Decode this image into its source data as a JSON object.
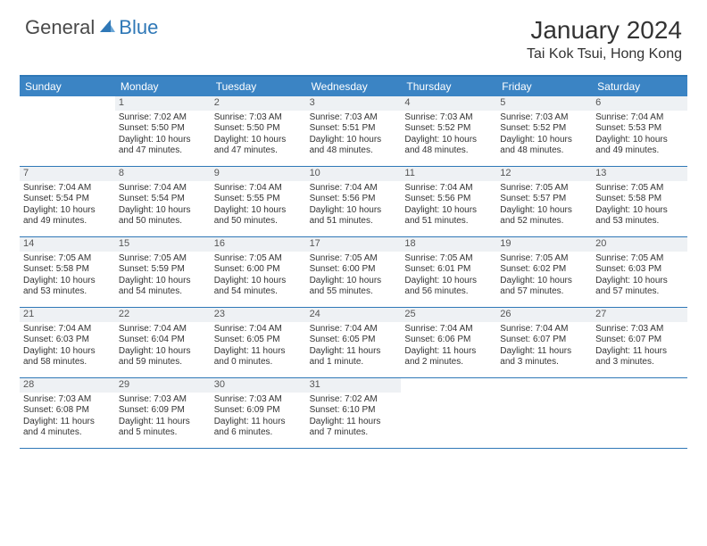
{
  "logo": {
    "part1": "General",
    "part2": "Blue"
  },
  "title": "January 2024",
  "location": "Tai Kok Tsui, Hong Kong",
  "colors": {
    "header_bg": "#3b84c4",
    "border": "#2f78b7",
    "daynum_bg": "#eef1f4",
    "text": "#333333"
  },
  "dayNames": [
    "Sunday",
    "Monday",
    "Tuesday",
    "Wednesday",
    "Thursday",
    "Friday",
    "Saturday"
  ],
  "weeks": [
    [
      {
        "n": "",
        "sr": "",
        "ss": "",
        "dl": ""
      },
      {
        "n": "1",
        "sr": "Sunrise: 7:02 AM",
        "ss": "Sunset: 5:50 PM",
        "dl": "Daylight: 10 hours and 47 minutes."
      },
      {
        "n": "2",
        "sr": "Sunrise: 7:03 AM",
        "ss": "Sunset: 5:50 PM",
        "dl": "Daylight: 10 hours and 47 minutes."
      },
      {
        "n": "3",
        "sr": "Sunrise: 7:03 AM",
        "ss": "Sunset: 5:51 PM",
        "dl": "Daylight: 10 hours and 48 minutes."
      },
      {
        "n": "4",
        "sr": "Sunrise: 7:03 AM",
        "ss": "Sunset: 5:52 PM",
        "dl": "Daylight: 10 hours and 48 minutes."
      },
      {
        "n": "5",
        "sr": "Sunrise: 7:03 AM",
        "ss": "Sunset: 5:52 PM",
        "dl": "Daylight: 10 hours and 48 minutes."
      },
      {
        "n": "6",
        "sr": "Sunrise: 7:04 AM",
        "ss": "Sunset: 5:53 PM",
        "dl": "Daylight: 10 hours and 49 minutes."
      }
    ],
    [
      {
        "n": "7",
        "sr": "Sunrise: 7:04 AM",
        "ss": "Sunset: 5:54 PM",
        "dl": "Daylight: 10 hours and 49 minutes."
      },
      {
        "n": "8",
        "sr": "Sunrise: 7:04 AM",
        "ss": "Sunset: 5:54 PM",
        "dl": "Daylight: 10 hours and 50 minutes."
      },
      {
        "n": "9",
        "sr": "Sunrise: 7:04 AM",
        "ss": "Sunset: 5:55 PM",
        "dl": "Daylight: 10 hours and 50 minutes."
      },
      {
        "n": "10",
        "sr": "Sunrise: 7:04 AM",
        "ss": "Sunset: 5:56 PM",
        "dl": "Daylight: 10 hours and 51 minutes."
      },
      {
        "n": "11",
        "sr": "Sunrise: 7:04 AM",
        "ss": "Sunset: 5:56 PM",
        "dl": "Daylight: 10 hours and 51 minutes."
      },
      {
        "n": "12",
        "sr": "Sunrise: 7:05 AM",
        "ss": "Sunset: 5:57 PM",
        "dl": "Daylight: 10 hours and 52 minutes."
      },
      {
        "n": "13",
        "sr": "Sunrise: 7:05 AM",
        "ss": "Sunset: 5:58 PM",
        "dl": "Daylight: 10 hours and 53 minutes."
      }
    ],
    [
      {
        "n": "14",
        "sr": "Sunrise: 7:05 AM",
        "ss": "Sunset: 5:58 PM",
        "dl": "Daylight: 10 hours and 53 minutes."
      },
      {
        "n": "15",
        "sr": "Sunrise: 7:05 AM",
        "ss": "Sunset: 5:59 PM",
        "dl": "Daylight: 10 hours and 54 minutes."
      },
      {
        "n": "16",
        "sr": "Sunrise: 7:05 AM",
        "ss": "Sunset: 6:00 PM",
        "dl": "Daylight: 10 hours and 54 minutes."
      },
      {
        "n": "17",
        "sr": "Sunrise: 7:05 AM",
        "ss": "Sunset: 6:00 PM",
        "dl": "Daylight: 10 hours and 55 minutes."
      },
      {
        "n": "18",
        "sr": "Sunrise: 7:05 AM",
        "ss": "Sunset: 6:01 PM",
        "dl": "Daylight: 10 hours and 56 minutes."
      },
      {
        "n": "19",
        "sr": "Sunrise: 7:05 AM",
        "ss": "Sunset: 6:02 PM",
        "dl": "Daylight: 10 hours and 57 minutes."
      },
      {
        "n": "20",
        "sr": "Sunrise: 7:05 AM",
        "ss": "Sunset: 6:03 PM",
        "dl": "Daylight: 10 hours and 57 minutes."
      }
    ],
    [
      {
        "n": "21",
        "sr": "Sunrise: 7:04 AM",
        "ss": "Sunset: 6:03 PM",
        "dl": "Daylight: 10 hours and 58 minutes."
      },
      {
        "n": "22",
        "sr": "Sunrise: 7:04 AM",
        "ss": "Sunset: 6:04 PM",
        "dl": "Daylight: 10 hours and 59 minutes."
      },
      {
        "n": "23",
        "sr": "Sunrise: 7:04 AM",
        "ss": "Sunset: 6:05 PM",
        "dl": "Daylight: 11 hours and 0 minutes."
      },
      {
        "n": "24",
        "sr": "Sunrise: 7:04 AM",
        "ss": "Sunset: 6:05 PM",
        "dl": "Daylight: 11 hours and 1 minute."
      },
      {
        "n": "25",
        "sr": "Sunrise: 7:04 AM",
        "ss": "Sunset: 6:06 PM",
        "dl": "Daylight: 11 hours and 2 minutes."
      },
      {
        "n": "26",
        "sr": "Sunrise: 7:04 AM",
        "ss": "Sunset: 6:07 PM",
        "dl": "Daylight: 11 hours and 3 minutes."
      },
      {
        "n": "27",
        "sr": "Sunrise: 7:03 AM",
        "ss": "Sunset: 6:07 PM",
        "dl": "Daylight: 11 hours and 3 minutes."
      }
    ],
    [
      {
        "n": "28",
        "sr": "Sunrise: 7:03 AM",
        "ss": "Sunset: 6:08 PM",
        "dl": "Daylight: 11 hours and 4 minutes."
      },
      {
        "n": "29",
        "sr": "Sunrise: 7:03 AM",
        "ss": "Sunset: 6:09 PM",
        "dl": "Daylight: 11 hours and 5 minutes."
      },
      {
        "n": "30",
        "sr": "Sunrise: 7:03 AM",
        "ss": "Sunset: 6:09 PM",
        "dl": "Daylight: 11 hours and 6 minutes."
      },
      {
        "n": "31",
        "sr": "Sunrise: 7:02 AM",
        "ss": "Sunset: 6:10 PM",
        "dl": "Daylight: 11 hours and 7 minutes."
      },
      {
        "n": "",
        "sr": "",
        "ss": "",
        "dl": ""
      },
      {
        "n": "",
        "sr": "",
        "ss": "",
        "dl": ""
      },
      {
        "n": "",
        "sr": "",
        "ss": "",
        "dl": ""
      }
    ]
  ]
}
